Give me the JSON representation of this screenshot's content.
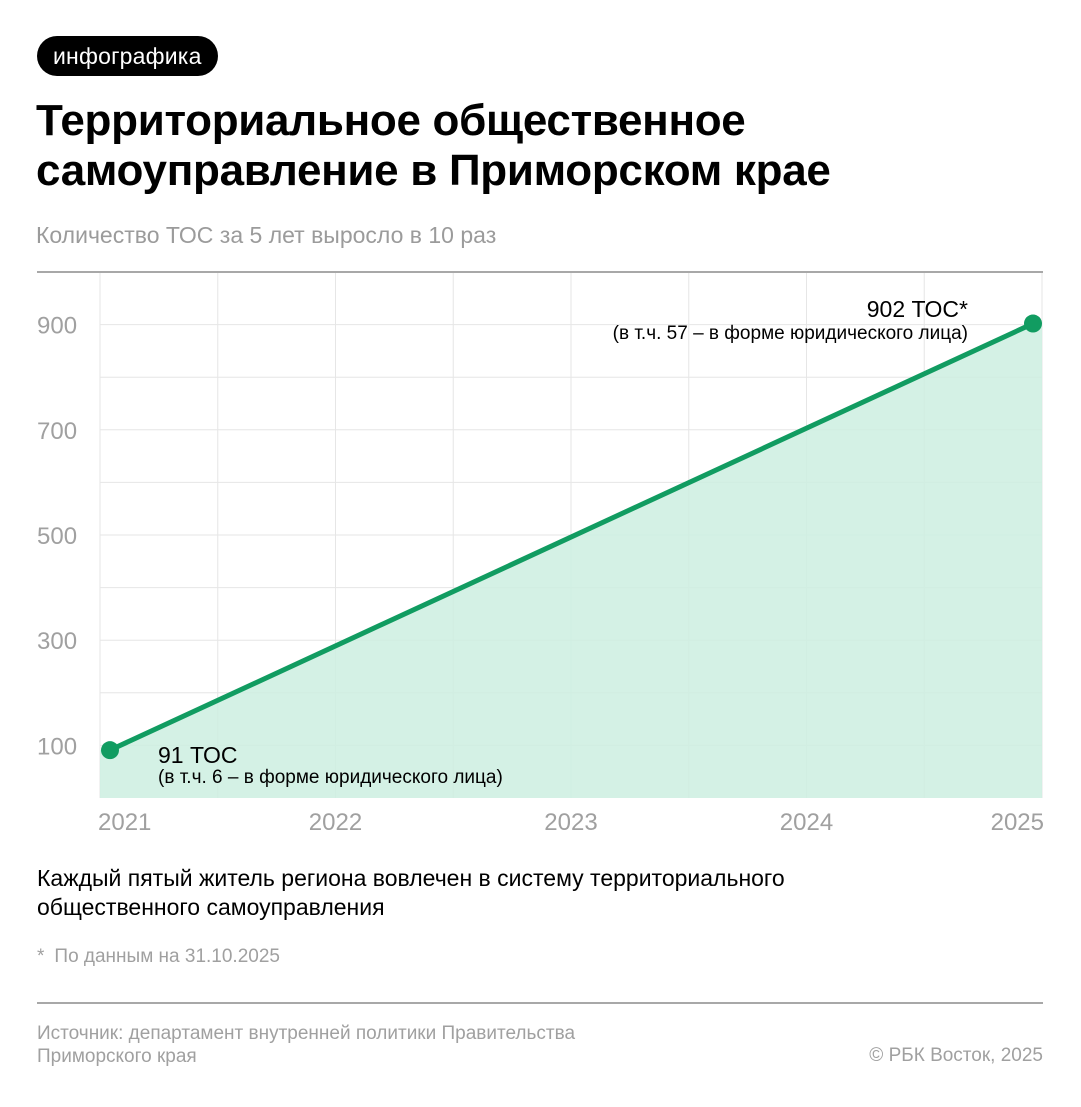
{
  "badge": "инфографика",
  "title": "Территориальное общественное самоуправление в Приморском крае",
  "subtitle": "Количество ТОС за 5 лет выросло в 10 раз",
  "annotations": {
    "start": {
      "big": "91 ТОС",
      "small": "(в т.ч. 6 – в форме юридического лица)"
    },
    "end": {
      "big": "902 ТОС*",
      "small": "(в т.ч. 57 – в форме юридического лица)"
    }
  },
  "note": "Каждый пятый житель региона вовлечен в систему территориального общественного самоуправления",
  "footnote": {
    "star": "*",
    "text": "По данным на 31.10.2025"
  },
  "source": "Источник: департамент внутренней политики Правительства Приморского края",
  "copyright": "© РБК Восток, 2025",
  "colors": {
    "line": "#119c61",
    "fill": "#cdeee1",
    "grid": "#e6e6e6",
    "axis_text": "#a0a0a0"
  },
  "chart_data": {
    "type": "area",
    "title": "Территориальное общественное самоуправление в Приморском крае",
    "subtitle": "Количество ТОС за 5 лет выросло в 10 раз",
    "categories": [
      "2021",
      "2022",
      "2023",
      "2024",
      "2025"
    ],
    "x": [
      2021,
      2025
    ],
    "values": [
      91,
      902
    ],
    "series": [
      {
        "name": "Количество ТОС",
        "x": [
          2021,
          2025
        ],
        "values": [
          91,
          902
        ]
      }
    ],
    "point_labels": [
      {
        "x": 2021,
        "value": 91,
        "label": "91 ТОС",
        "note": "(в т.ч. 6 – в форме юридического лица)"
      },
      {
        "x": 2025,
        "value": 902,
        "label": "902 ТОС*",
        "note": "(в т.ч. 57 – в форме юридического лица)"
      }
    ],
    "yticks": [
      100,
      300,
      500,
      700,
      900
    ],
    "ylim": [
      0,
      1000
    ],
    "xlabel": "",
    "ylabel": "",
    "grid": true,
    "legend": "none"
  }
}
